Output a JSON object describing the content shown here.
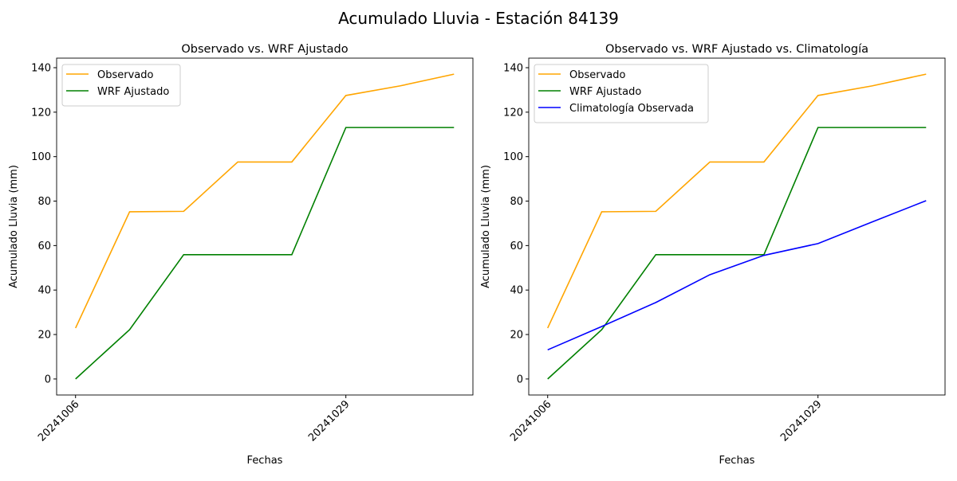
{
  "suptitle": "Acumulado Lluvia - Estación 84139",
  "chart_data": [
    {
      "type": "line",
      "title": "Observado vs. WRF Ajustado",
      "xlabel": "Fechas",
      "ylabel": "Acumulado Lluvia (mm)",
      "x_ticks": [
        {
          "index": 0,
          "label": "20241006"
        },
        {
          "index": 5,
          "label": "20241029"
        }
      ],
      "y_ticks": [
        0,
        20,
        40,
        60,
        80,
        100,
        120,
        140
      ],
      "xlim": [
        -0.35,
        7.35
      ],
      "ylim": [
        -7.2,
        144.3
      ],
      "legend_position": "upper-left",
      "series": [
        {
          "name": "Observado",
          "color": "#ffa500",
          "values": [
            22.9,
            75.2,
            75.4,
            97.6,
            97.6,
            127.5,
            131.8,
            137.1
          ]
        },
        {
          "name": "WRF Ajustado",
          "color": "#008000",
          "values": [
            0,
            22.2,
            55.9,
            55.9,
            55.9,
            113.1,
            113.1,
            113.1
          ]
        }
      ]
    },
    {
      "type": "line",
      "title": "Observado vs. WRF Ajustado vs. Climatología",
      "xlabel": "Fechas",
      "ylabel": "Acumulado Lluvia (mm)",
      "x_ticks": [
        {
          "index": 0,
          "label": "20241006"
        },
        {
          "index": 5,
          "label": "20241029"
        }
      ],
      "y_ticks": [
        0,
        20,
        40,
        60,
        80,
        100,
        120,
        140
      ],
      "xlim": [
        -0.35,
        7.35
      ],
      "ylim": [
        -7.2,
        144.3
      ],
      "legend_position": "upper-left",
      "series": [
        {
          "name": "Observado",
          "color": "#ffa500",
          "values": [
            22.9,
            75.2,
            75.4,
            97.6,
            97.6,
            127.5,
            131.8,
            137.1
          ]
        },
        {
          "name": "WRF Ajustado",
          "color": "#008000",
          "values": [
            0,
            22.2,
            55.9,
            55.9,
            55.9,
            113.1,
            113.1,
            113.1
          ]
        },
        {
          "name": "Climatología Observada",
          "color": "#0000ff",
          "values": [
            13.1,
            23.6,
            34.4,
            46.9,
            55.6,
            60.9,
            70.6,
            80.2
          ]
        }
      ]
    }
  ]
}
